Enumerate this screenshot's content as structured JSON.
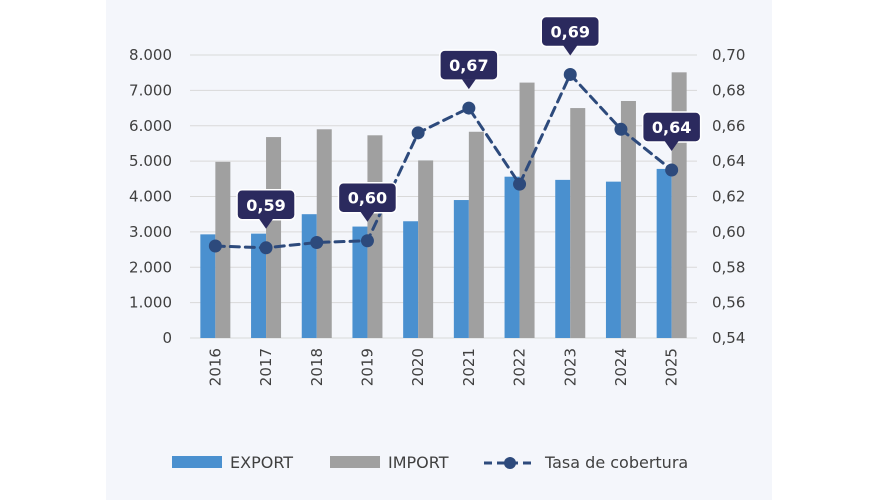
{
  "chart_data": {
    "type": "bar",
    "categories": [
      "2016",
      "2017",
      "2018",
      "2019",
      "2020",
      "2021",
      "2022",
      "2023",
      "2024",
      "2025"
    ],
    "series": [
      {
        "name": "EXPORT",
        "type": "bar",
        "axis": "left",
        "color": "#4a90cf",
        "values": [
          2930,
          2950,
          3500,
          3150,
          3300,
          3900,
          4560,
          4470,
          4420,
          4780
        ]
      },
      {
        "name": "IMPORT",
        "type": "bar",
        "axis": "left",
        "color": "#a0a0a0",
        "values": [
          4980,
          5680,
          5900,
          5730,
          5020,
          5830,
          7220,
          6500,
          6700,
          7510
        ]
      },
      {
        "name": "Tasa de cobertura",
        "type": "line",
        "axis": "right",
        "color": "#2d4a7c",
        "dashed": true,
        "values": [
          0.592,
          0.591,
          0.594,
          0.595,
          0.656,
          0.67,
          0.627,
          0.689,
          0.658,
          0.635
        ]
      }
    ],
    "y_left": {
      "min": 0,
      "max": 8000,
      "ticks": [
        "0",
        "1.000",
        "2.000",
        "3.000",
        "4.000",
        "5.000",
        "6.000",
        "7.000",
        "8.000"
      ]
    },
    "y_right": {
      "min": 0.54,
      "max": 0.7,
      "ticks": [
        "0,54",
        "0,56",
        "0,58",
        "0,60",
        "0,62",
        "0,64",
        "0,66",
        "0,68",
        "0,70"
      ]
    },
    "annotations": [
      {
        "index": 1,
        "label": "0,59"
      },
      {
        "index": 3,
        "label": "0,60"
      },
      {
        "index": 5,
        "label": "0,67"
      },
      {
        "index": 7,
        "label": "0,69"
      },
      {
        "index": 9,
        "label": "0,64"
      }
    ],
    "callout_color": "#2b2a5e",
    "grid": true,
    "legend_position": "bottom"
  }
}
